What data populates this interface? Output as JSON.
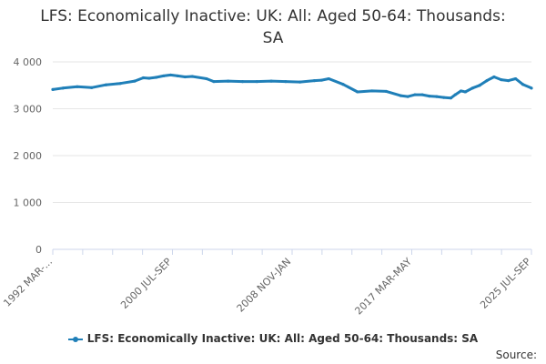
{
  "title_line1": "LFS: Economically Inactive: UK: All: Aged 50-64: Thousands:",
  "title_line2": "SA",
  "source_label": "Source:",
  "colors": {
    "series": "#1f7fb8",
    "grid": "#e6e6e6",
    "axis": "#ccd6eb",
    "text": "#666666"
  },
  "chart_data": {
    "type": "line",
    "title": "LFS: Economically Inactive: UK: All: Aged 50-64: Thousands: SA",
    "xlabel": "",
    "ylabel": "",
    "ylim": [
      0,
      4000
    ],
    "yticks": [
      0,
      1000,
      2000,
      3000,
      4000
    ],
    "ytick_labels": [
      "0",
      "1 000",
      "2 000",
      "3 000",
      "4 000"
    ],
    "x_start": "1992 MAR-MAY",
    "x_end": "2025 JUL-SEP",
    "xtick_labels": [
      "1992 MAR-...",
      "2000 JUL-SEP",
      "2008 NOV-JAN",
      "2017 MAR-MAY",
      "2025 JUL-SEP"
    ],
    "xtick_years": [
      1992.3,
      2000.6,
      2008.9,
      2017.3,
      2025.6
    ],
    "grid": true,
    "legend": "bottom",
    "series": [
      {
        "name": "LFS: Economically Inactive: UK: All: Aged 50-64: Thousands: SA",
        "x": [
          1992.3,
          1993.0,
          1994.0,
          1995.0,
          1996.0,
          1997.0,
          1998.0,
          1998.6,
          1999.0,
          1999.5,
          2000.0,
          2000.5,
          2001.0,
          2001.5,
          2002.0,
          2003.0,
          2003.5,
          2004.5,
          2005.5,
          2006.5,
          2007.5,
          2008.5,
          2009.5,
          2010.5,
          2011.0,
          2011.5,
          2012.5,
          2013.5,
          2014.5,
          2015.5,
          2016.5,
          2017.0,
          2017.5,
          2018.0,
          2018.5,
          2019.0,
          2019.5,
          2020.0,
          2020.3,
          2020.7,
          2021.0,
          2021.5,
          2022.0,
          2022.5,
          2023.0,
          2023.5,
          2024.0,
          2024.5,
          2025.0,
          2025.6
        ],
        "y": [
          3410,
          3440,
          3470,
          3450,
          3510,
          3540,
          3590,
          3660,
          3650,
          3670,
          3700,
          3720,
          3700,
          3680,
          3690,
          3640,
          3580,
          3590,
          3580,
          3580,
          3590,
          3580,
          3570,
          3600,
          3610,
          3640,
          3520,
          3360,
          3380,
          3370,
          3280,
          3260,
          3300,
          3300,
          3270,
          3260,
          3240,
          3230,
          3300,
          3380,
          3360,
          3440,
          3500,
          3600,
          3680,
          3620,
          3600,
          3640,
          3520,
          3440
        ]
      }
    ]
  }
}
